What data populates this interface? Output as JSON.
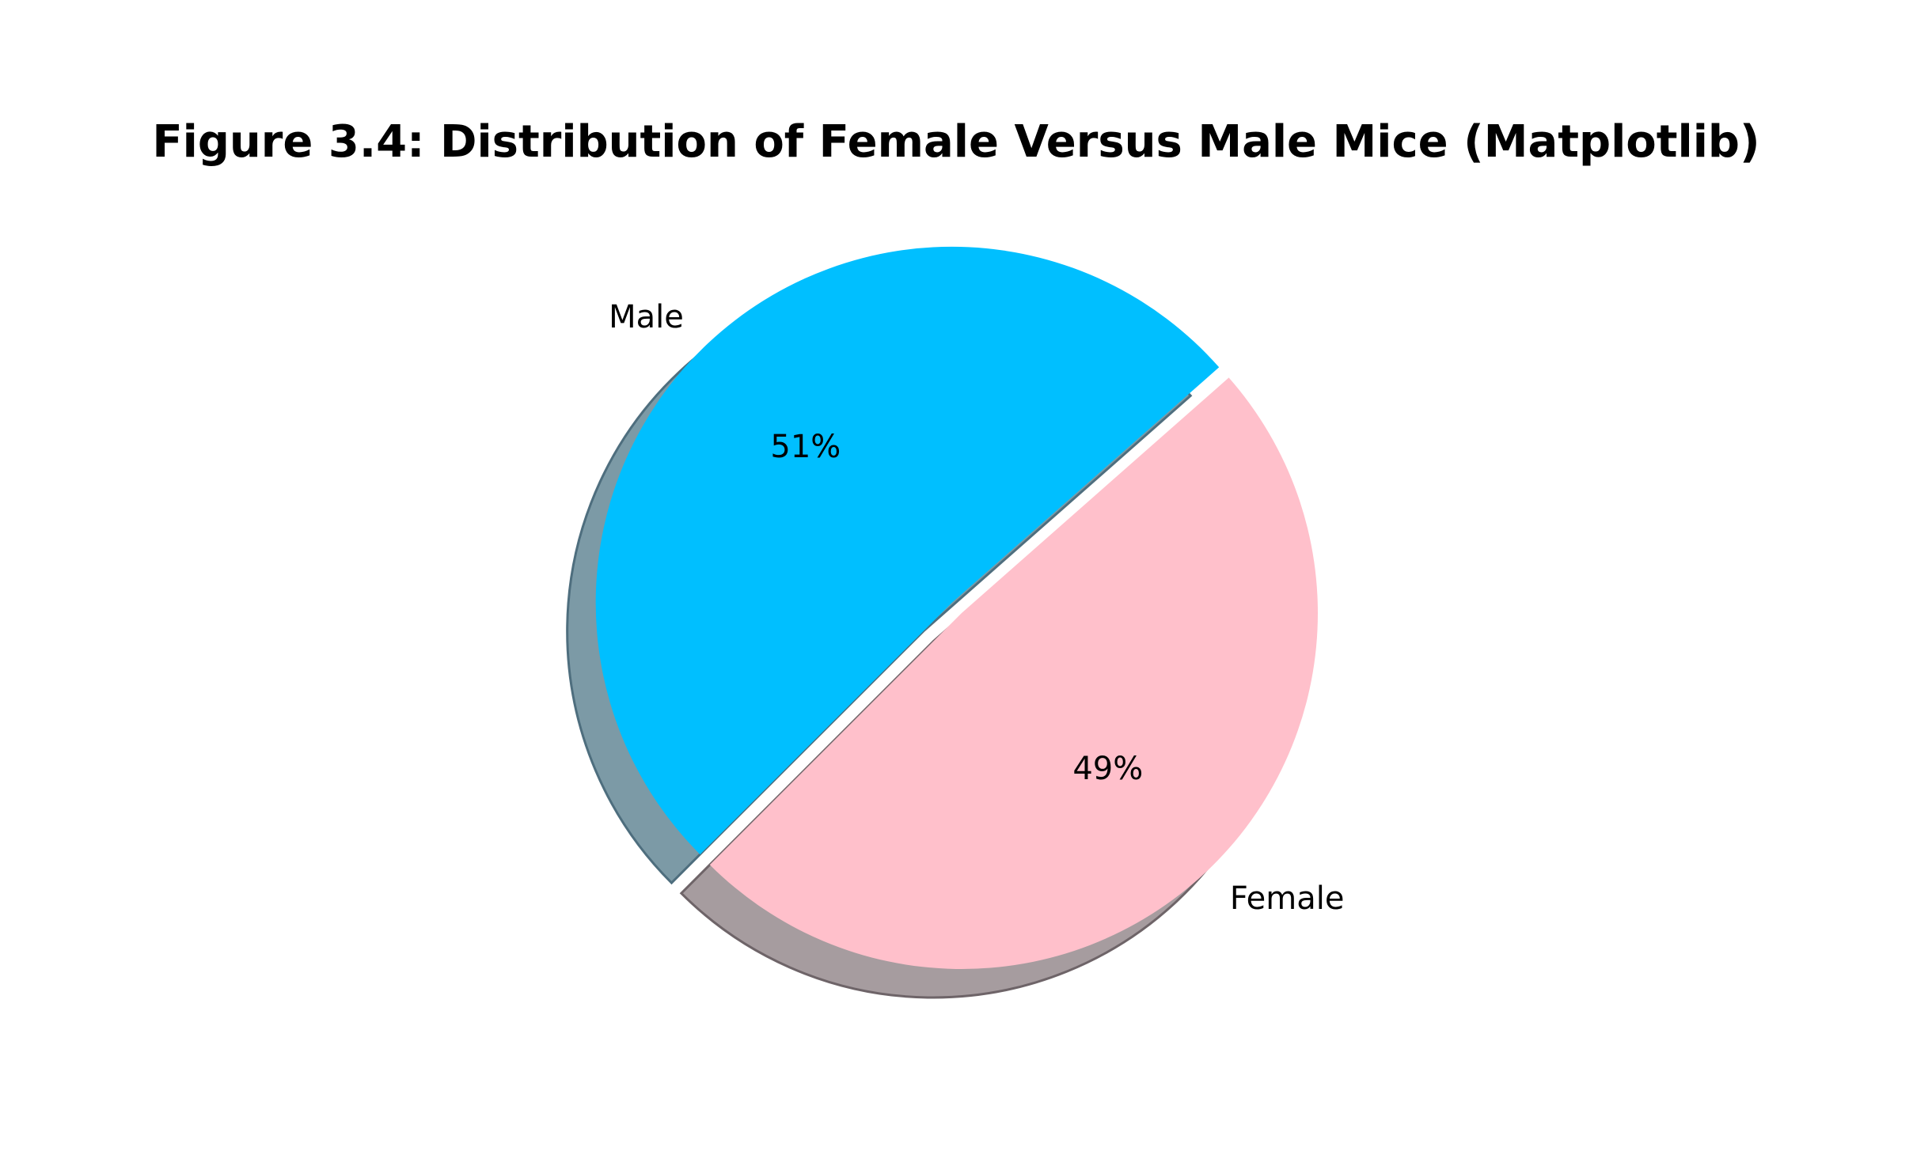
{
  "chart_data": {
    "type": "pie",
    "title": "Figure 3.4: Distribution of Female Versus Male Mice (Matplotlib)",
    "slices": [
      {
        "label": "Female",
        "value": 49,
        "pct_label": "49%",
        "color": "#FFC0CB",
        "exploded": false
      },
      {
        "label": "Male",
        "value": 51,
        "pct_label": "51%",
        "color": "#00BFFF",
        "exploded": true
      }
    ],
    "start_angle_deg": 225,
    "shadow": true,
    "autopct": "%1.0f%%"
  }
}
